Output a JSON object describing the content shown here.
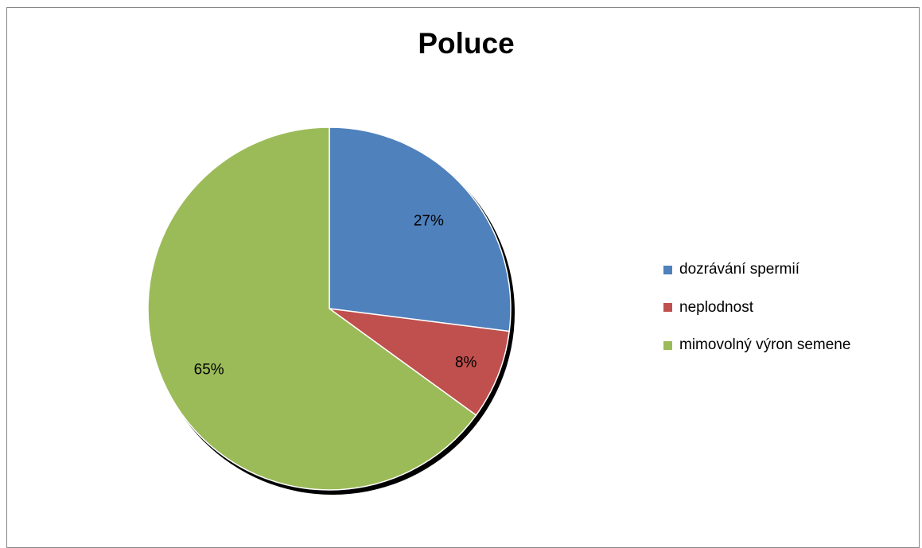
{
  "chart_data": {
    "type": "pie",
    "title": "Poluce",
    "categories": [
      "dozrávání spermií",
      "neplodnost",
      "mimovolný výron semene"
    ],
    "values": [
      27,
      8,
      65
    ],
    "data_labels": [
      "27%",
      "8%",
      "65%"
    ],
    "colors": [
      "#4F81BD",
      "#C0504D",
      "#9BBB59"
    ],
    "legend_position": "right"
  }
}
